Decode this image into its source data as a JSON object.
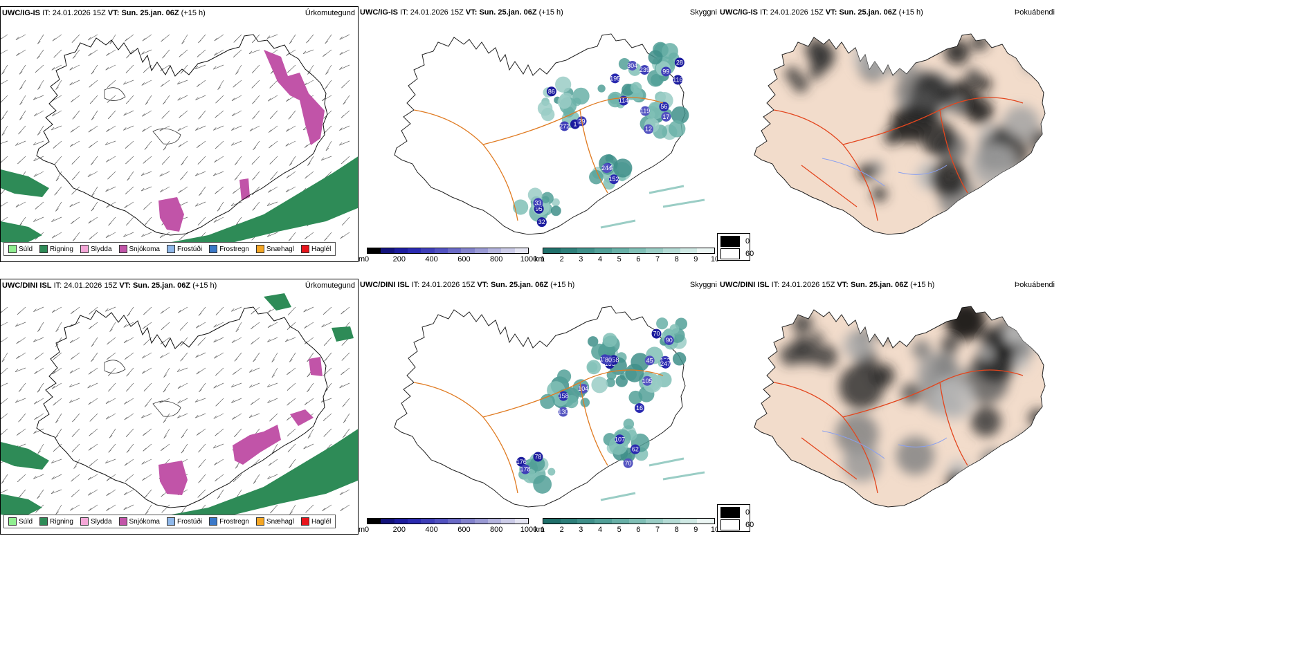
{
  "header_common": {
    "it_label": "IT:",
    "it_value": "24.01.2026 15Z",
    "vt_label": "VT:",
    "vt_value": "Sun. 25.jan. 06Z",
    "lead": "(+15 h)"
  },
  "rows": [
    {
      "model": "UWC/IG-IS",
      "precip": {
        "label": "Úrkomutegund"
      },
      "visibility": {
        "label": "Skyggni",
        "numbers": [
          "1",
          "195",
          "99",
          "12",
          "95",
          "104",
          "29",
          "119",
          "116",
          "56",
          "33",
          "244",
          "86",
          "114",
          "239",
          "17",
          "32",
          "152",
          "272",
          "304",
          "28"
        ]
      },
      "fog": {
        "label": "Þokuábendi"
      }
    },
    {
      "model": "UWC/DINI ISL",
      "precip": {
        "label": "Úrkomutegund"
      },
      "visibility": {
        "label": "Skyggni",
        "numbers": [
          "136",
          "16",
          "103",
          "104",
          "176",
          "107",
          "152",
          "105",
          "70",
          "158",
          "178",
          "70",
          "158",
          "247",
          "90",
          "130",
          "78",
          "62",
          "80",
          "45"
        ]
      },
      "fog": {
        "label": "Þokuábendi"
      }
    }
  ],
  "precip_legend": [
    {
      "label": "Súld",
      "color": "#90ee90"
    },
    {
      "label": "Rigning",
      "color": "#2e8b57"
    },
    {
      "label": "Slydda",
      "color": "#f4a6d7"
    },
    {
      "label": "Snjókoma",
      "color": "#c154a8"
    },
    {
      "label": "Frostúði",
      "color": "#8fb8ea"
    },
    {
      "label": "Frostregn",
      "color": "#3a78c8"
    },
    {
      "label": "Snæhagl",
      "color": "#f5a623"
    },
    {
      "label": "Haglél",
      "color": "#e8141b"
    }
  ],
  "ceiling_scale": {
    "unit": "m",
    "ticks": [
      "0",
      "200",
      "400",
      "600",
      "800",
      "1000"
    ],
    "colors": [
      "#000000",
      "#12127a",
      "#1c1c9e",
      "#2a2ab0",
      "#3e3eb8",
      "#5252c0",
      "#6a6ac6",
      "#8282cc",
      "#9a9ad4",
      "#b4b4de",
      "#cccce8",
      "#e4e4f2"
    ]
  },
  "vis_scale": {
    "unit": "km",
    "ticks": [
      "1",
      "2",
      "3",
      "4",
      "5",
      "6",
      "7",
      "8",
      "9",
      "10"
    ],
    "colors": [
      "#1f6f6a",
      "#2e7f7a",
      "#3f8f89",
      "#52a098",
      "#68b0a7",
      "#80bfb6",
      "#9acdc5",
      "#b4dbd5",
      "#cfe9e4",
      "#ecf6f4"
    ]
  },
  "fog_scale": {
    "values": [
      "0",
      "60"
    ],
    "colors": [
      "#000000",
      "#ffffff"
    ]
  }
}
